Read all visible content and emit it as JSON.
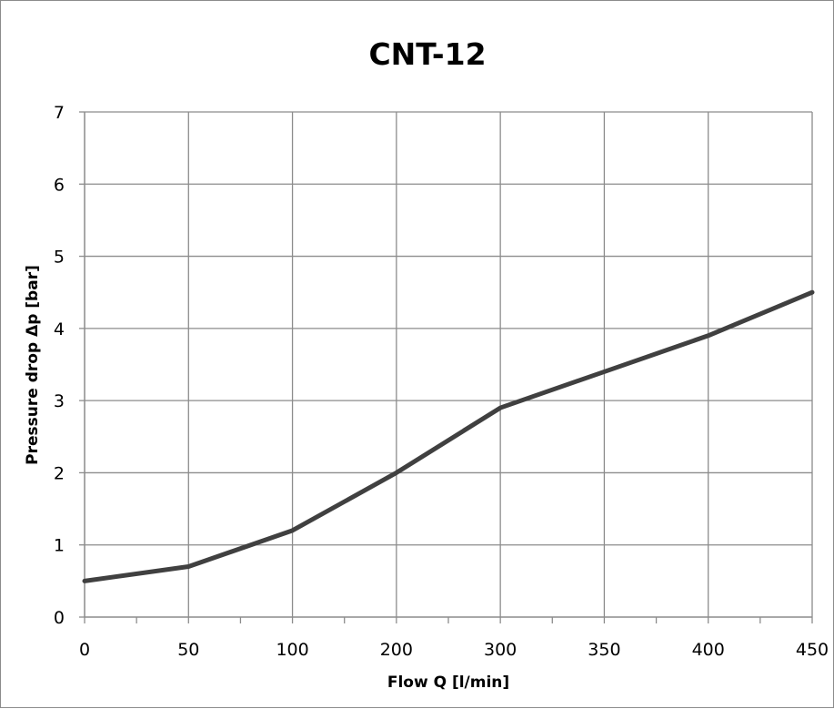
{
  "chart_data": {
    "type": "line",
    "title": "CNT-12",
    "xlabel": "Flow Q [l/min]",
    "ylabel": "Pressure drop Δp [bar]",
    "categories": [
      "0",
      "50",
      "100",
      "200",
      "300",
      "350",
      "400",
      "450"
    ],
    "ylim": [
      0,
      7
    ],
    "yticks": [
      "0",
      "1",
      "2",
      "3",
      "4",
      "5",
      "6",
      "7"
    ],
    "grid": true,
    "series": [
      {
        "values": [
          0.5,
          0.7,
          1.2,
          2.0,
          2.9,
          3.4,
          3.9,
          4.5
        ]
      }
    ],
    "colors": {
      "line": "#404040",
      "grid": "#8c8c8c",
      "axis": "#8c8c8c"
    }
  }
}
